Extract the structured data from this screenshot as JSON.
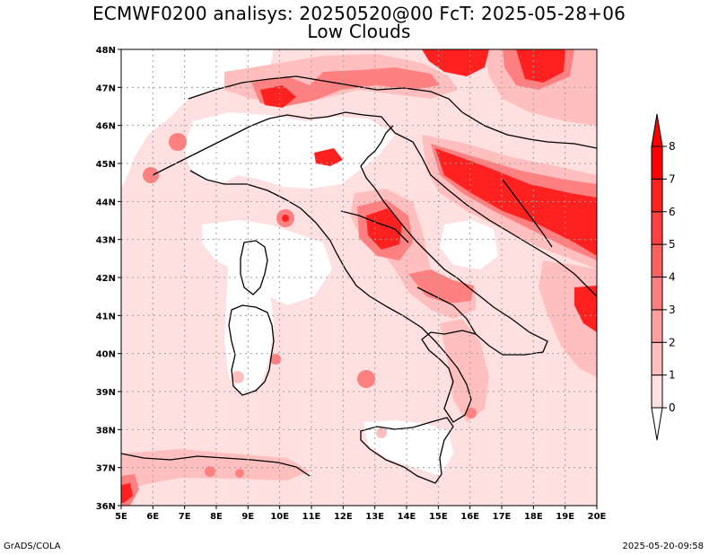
{
  "title": {
    "line1": "ECMWF0200 analisys: 20250520@00 FcT: 2025-05-28+06",
    "line2": "Low Clouds"
  },
  "footer": {
    "left": "GrADS/COLA",
    "right": "2025-05-20-09:58"
  },
  "map": {
    "lon_ticks": [
      "5E",
      "6E",
      "7E",
      "8E",
      "9E",
      "10E",
      "11E",
      "12E",
      "13E",
      "14E",
      "15E",
      "16E",
      "17E",
      "18E",
      "19E",
      "20E"
    ],
    "lat_ticks": [
      "36N",
      "37N",
      "38N",
      "39N",
      "40N",
      "41N",
      "42N",
      "43N",
      "44N",
      "45N",
      "46N",
      "47N",
      "48N"
    ],
    "lon_range": [
      5,
      20
    ],
    "lat_range": [
      36,
      48
    ],
    "grid": "dotted"
  },
  "colorbar": {
    "levels": [
      "0",
      "1",
      "2",
      "3",
      "4",
      "5",
      "6",
      "7",
      "8"
    ],
    "colors": [
      "#ffffff",
      "#ffe0e0",
      "#ffbfbf",
      "#ff9f9f",
      "#ff8080",
      "#ff6060",
      "#ff4040",
      "#ff2020",
      "#ff0000"
    ]
  },
  "colors": {
    "land_border": "#000000",
    "grid": "#a0a0a0"
  }
}
